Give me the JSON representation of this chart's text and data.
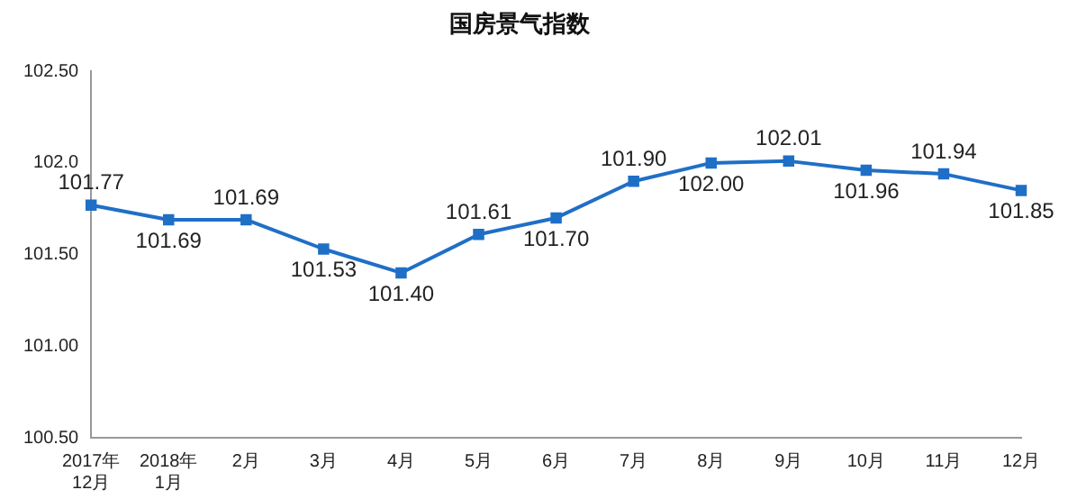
{
  "chart_data": {
    "type": "line",
    "title": "国房景气指数",
    "categories": [
      "2017年\n12月",
      "2018年\n1月",
      "2月",
      "3月",
      "4月",
      "5月",
      "6月",
      "7月",
      "8月",
      "9月",
      "10月",
      "11月",
      "12月"
    ],
    "series": [
      {
        "color": "#1f6fc6",
        "values": [
          101.77,
          101.69,
          101.69,
          101.53,
          101.4,
          101.61,
          101.7,
          101.9,
          102.0,
          102.01,
          101.96,
          101.94,
          101.85
        ],
        "value_labels": [
          "101.77",
          "101.69",
          "101.69",
          "101.53",
          "101.40",
          "101.61",
          "101.70",
          "101.90",
          "102.00",
          "102.01",
          "101.96",
          "101.94",
          "101.85"
        ]
      }
    ],
    "ylim": [
      100.5,
      102.5
    ],
    "yticks": [
      {
        "value": 100.5,
        "label": "100.50"
      },
      {
        "value": 101,
        "label": "101.00"
      },
      {
        "value": 101.5,
        "label": "101.50"
      },
      {
        "value": 102,
        "label": "102.0"
      },
      {
        "value": 102.5,
        "label": "102.50"
      }
    ],
    "grid": false,
    "legend": false,
    "marker": "square",
    "line_style": "solid"
  }
}
